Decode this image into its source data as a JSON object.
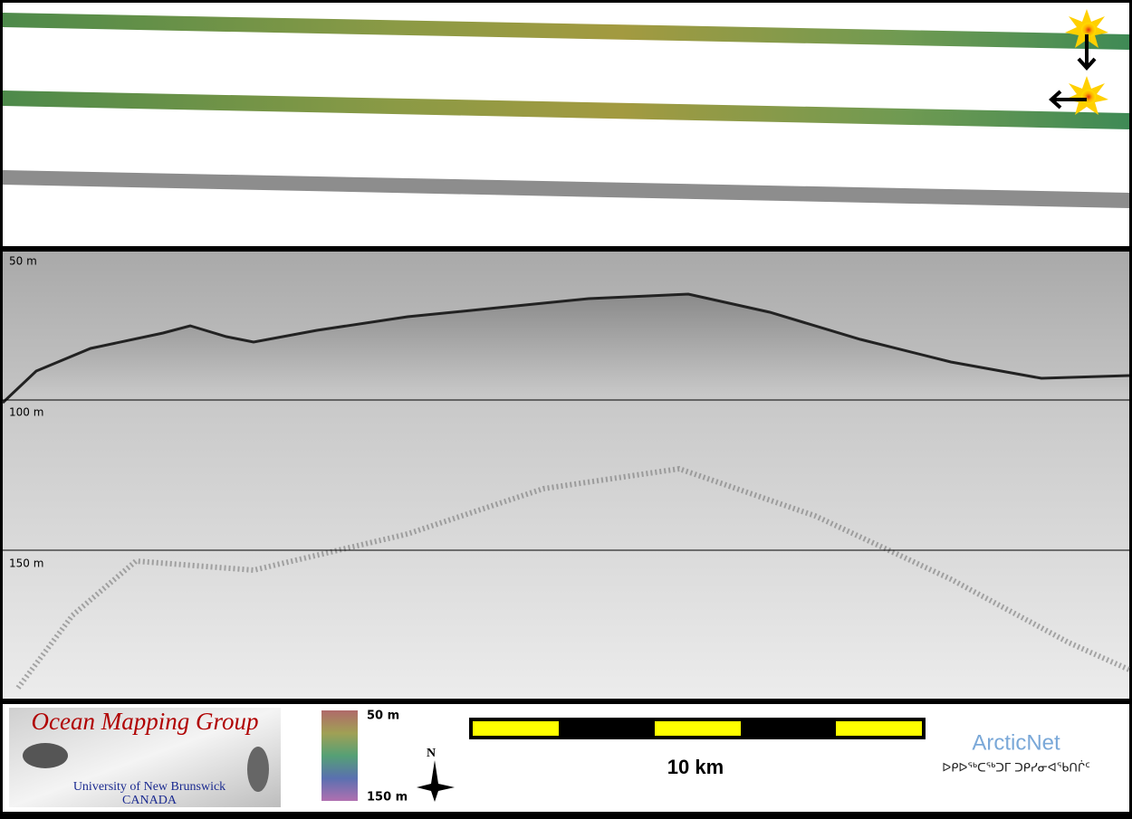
{
  "profile": {
    "depth_labels": [
      "50 m",
      "100 m",
      "150 m"
    ]
  },
  "footer": {
    "logo": {
      "title": "Ocean Mapping Group",
      "university": "University of New Brunswick",
      "country": "CANADA"
    },
    "colorbar": {
      "top_label": "50 m",
      "bottom_label": "150 m"
    },
    "north": "N",
    "scale_label": "10 km",
    "partner": {
      "name": "ArcticNet",
      "syllabics": "ᐅᑭᐅᖅᑕᖅᑐᒥ ᑐᑭᓯᓂᐊᖃᑎᒌᑦ"
    }
  }
}
